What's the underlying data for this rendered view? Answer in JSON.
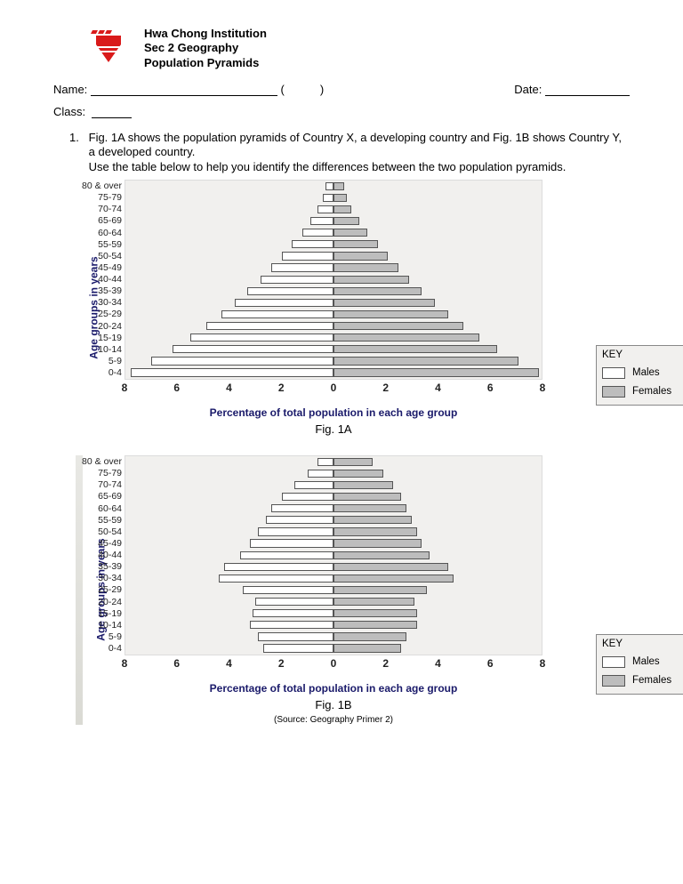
{
  "header": {
    "line1": "Hwa Chong Institution",
    "line2": "Sec 2 Geography",
    "line3": " Population Pyramids"
  },
  "form": {
    "name_label": "Name:",
    "paren_open": "(",
    "paren_close": ")",
    "date_label": "Date:",
    "class_label": "Class:"
  },
  "question": {
    "num": "1.",
    "text": "Fig. 1A shows the population pyramids of Country X, a developing country and Fig. 1B shows Country Y, a developed country.\nUse the table below to help you identify the differences between the two population pyramids."
  },
  "axes": {
    "y_label": "Age groups in years",
    "x_label": "Percentage of total population in each age group",
    "y_ticks": [
      "80 & over",
      "75-79",
      "70-74",
      "65-69",
      "60-64",
      "55-59",
      "50-54",
      "45-49",
      "40-44",
      "35-39",
      "30-34",
      "25-29",
      "20-24",
      "15-19",
      "10-14",
      "5-9",
      "0-4"
    ],
    "x_ticks": [
      "8",
      "6",
      "4",
      "2",
      "0",
      "2",
      "4",
      "6",
      "8"
    ]
  },
  "key": {
    "title": "KEY",
    "males": "Males",
    "females": "Females",
    "male_color": "#ffffff",
    "female_color": "#bdbdbd"
  },
  "chartA": {
    "type": "population-pyramid",
    "caption": "Fig. 1A",
    "scale_max": 8,
    "bar_border": "#555555",
    "background": "#f1f0ee",
    "males": [
      0.3,
      0.4,
      0.6,
      0.9,
      1.2,
      1.6,
      2.0,
      2.4,
      2.8,
      3.3,
      3.8,
      4.3,
      4.9,
      5.5,
      6.2,
      7.0,
      7.8
    ],
    "females": [
      0.4,
      0.5,
      0.7,
      1.0,
      1.3,
      1.7,
      2.1,
      2.5,
      2.9,
      3.4,
      3.9,
      4.4,
      5.0,
      5.6,
      6.3,
      7.1,
      7.9
    ]
  },
  "chartB": {
    "type": "population-pyramid",
    "caption": "Fig. 1B",
    "source": "(Source: Geography Primer 2)",
    "scale_max": 8,
    "bar_border": "#555555",
    "background": "#f1f0ee",
    "males": [
      0.6,
      1.0,
      1.5,
      2.0,
      2.4,
      2.6,
      2.9,
      3.2,
      3.6,
      4.2,
      4.4,
      3.5,
      3.0,
      3.1,
      3.2,
      2.9,
      2.7
    ],
    "females": [
      1.5,
      1.9,
      2.3,
      2.6,
      2.8,
      3.0,
      3.2,
      3.4,
      3.7,
      4.4,
      4.6,
      3.6,
      3.1,
      3.2,
      3.2,
      2.8,
      2.6
    ]
  },
  "colors": {
    "axis_text": "#1a1a6a",
    "logo": "#d91a1a"
  }
}
